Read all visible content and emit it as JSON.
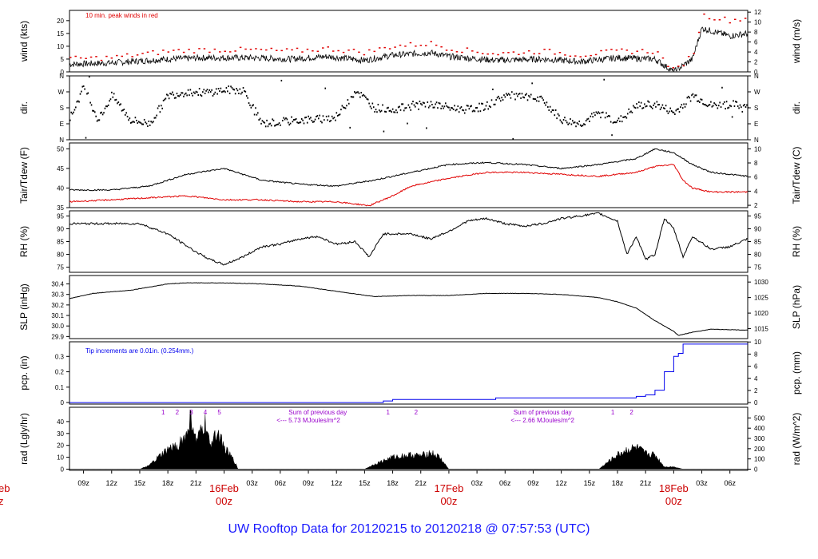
{
  "colors": {
    "red": "#e00000",
    "blue": "#0000ee",
    "purple": "#9900cc",
    "black": "#000000",
    "title": "#1a1aff",
    "date": "#cc0000"
  },
  "title": "UW Rooftop Data for 20120215  to  20120218 @ 07:57:53  (UTC)",
  "time_axis": {
    "hours_start": 7.5,
    "hours_end": 79.9,
    "tick_labels": [
      "09z",
      "12z",
      "15z",
      "18z",
      "21z",
      "",
      "03z",
      "06z",
      "09z",
      "12z",
      "15z",
      "18z",
      "21z",
      "",
      "03z",
      "06z",
      "09z",
      "12z",
      "15z",
      "18z",
      "21z",
      "",
      "03z",
      "06z"
    ],
    "tick_hours": [
      9,
      12,
      15,
      18,
      21,
      24,
      27,
      30,
      33,
      36,
      39,
      42,
      45,
      48,
      51,
      54,
      57,
      60,
      63,
      66,
      69,
      72,
      75,
      78
    ],
    "dates": [
      {
        "label": "16Feb",
        "hour": 24,
        "sub": "00z"
      },
      {
        "label": "17Feb",
        "hour": 48,
        "sub": "00z"
      },
      {
        "label": "18Feb",
        "hour": 72,
        "sub": "00z"
      }
    ],
    "partial_left_date": {
      "label": "eb",
      "sub": "z"
    }
  },
  "chart_data": [
    {
      "id": "wind",
      "type": "line",
      "ylabel": "wind (kts)",
      "ylabel_right": "wind (m/s)",
      "ylim": [
        0,
        24
      ],
      "yticks": [
        0,
        5,
        10,
        15,
        20
      ],
      "right_ylim": [
        0,
        12.35
      ],
      "right_ticks": [
        0,
        2,
        4,
        6,
        8,
        10,
        12
      ],
      "annotation": "10 min. peak winds in red",
      "series": [
        {
          "name": "wind speed",
          "color": "black",
          "x": [
            7.5,
            12,
            18,
            22,
            27,
            31,
            35,
            39,
            42,
            46,
            48,
            53,
            58,
            62,
            66,
            70,
            72,
            74,
            75,
            78,
            79.9
          ],
          "y": [
            3,
            3.5,
            5,
            5.5,
            5.5,
            5,
            6,
            4.5,
            6.5,
            7.5,
            6,
            4.5,
            5,
            4,
            5.5,
            5,
            0,
            5,
            17,
            14,
            15
          ]
        },
        {
          "name": "10 min. peak",
          "color": "red",
          "x": [
            7.5,
            12,
            18,
            22,
            27,
            31,
            35,
            39,
            42,
            46,
            48,
            53,
            58,
            62,
            66,
            70,
            72,
            74,
            75,
            78,
            79.9
          ],
          "y": [
            5,
            5.5,
            8,
            8.5,
            8.5,
            8,
            9,
            7.5,
            10,
            11,
            9,
            7,
            8,
            6.5,
            8,
            8,
            0,
            7,
            22,
            20,
            21
          ]
        }
      ]
    },
    {
      "id": "dir",
      "type": "scatter",
      "ylabel": "dir.",
      "ylim": [
        0,
        360
      ],
      "yticks": [
        0,
        90,
        180,
        270,
        360
      ],
      "ytick_labels": [
        "N",
        "E",
        "S",
        "W",
        "N"
      ],
      "right_ticks": [
        0,
        90,
        180,
        270,
        360
      ],
      "right_tick_labels": [
        "N",
        "E",
        "S",
        "W",
        "N"
      ],
      "series": [
        {
          "name": "wind direction",
          "color": "black",
          "x": [
            7.5,
            9,
            10.5,
            12,
            14,
            16,
            18,
            20,
            22,
            24,
            26,
            28,
            30,
            32,
            34,
            36,
            38,
            40,
            42,
            44,
            46,
            48,
            50,
            52,
            54,
            56,
            58,
            60,
            62,
            64,
            66,
            68,
            70,
            72,
            74,
            76,
            78,
            79.9
          ],
          "y": [
            120,
            300,
            110,
            250,
            110,
            90,
            250,
            270,
            265,
            280,
            280,
            90,
            100,
            110,
            115,
            130,
            280,
            180,
            170,
            190,
            200,
            180,
            170,
            190,
            250,
            240,
            220,
            110,
            90,
            150,
            100,
            190,
            200,
            150,
            250,
            190,
            200,
            180
          ]
        }
      ]
    },
    {
      "id": "temp",
      "type": "line",
      "ylabel": "Tair/Tdew (F)",
      "ylabel_right": "Tair/Tdew (C)",
      "ylim": [
        35,
        51.5
      ],
      "yticks": [
        35,
        40,
        45,
        50
      ],
      "right_ylim": [
        1.67,
        10.83
      ],
      "right_ticks": [
        2,
        4,
        6,
        8,
        10
      ],
      "series": [
        {
          "name": "Tair",
          "color": "black",
          "x": [
            7.5,
            12,
            16,
            20,
            24,
            28,
            32,
            36,
            40,
            44,
            48,
            52,
            56,
            60,
            64,
            68,
            70,
            72,
            74,
            76,
            79.9
          ],
          "y": [
            39.5,
            39.5,
            40.5,
            43.5,
            45,
            42,
            41,
            40.5,
            42,
            44,
            46,
            46.5,
            46,
            45,
            46,
            47.5,
            50,
            49,
            46,
            44,
            43
          ]
        },
        {
          "name": "Tdew",
          "color": "red",
          "x": [
            7.5,
            12,
            16,
            20,
            24,
            28,
            32,
            36,
            39.5,
            42,
            44,
            48,
            52,
            56,
            60,
            64,
            68,
            70,
            72,
            73,
            74,
            76,
            79.9
          ],
          "y": [
            36.5,
            37,
            37.5,
            38,
            37,
            37,
            36.5,
            36.5,
            35.5,
            38,
            40.5,
            42.5,
            44,
            44,
            43.5,
            43,
            44,
            45.5,
            46,
            42,
            40,
            39,
            39
          ]
        }
      ]
    },
    {
      "id": "rh",
      "type": "line",
      "ylabel": "RH (%)",
      "ylabel_right": "RH (%)",
      "ylim": [
        73,
        97
      ],
      "yticks": [
        75,
        80,
        85,
        90,
        95
      ],
      "right_ticks": [
        75,
        80,
        85,
        90,
        95
      ],
      "series": [
        {
          "name": "relative humidity",
          "color": "black",
          "x": [
            7.5,
            12,
            15,
            18,
            21,
            22.5,
            24,
            26,
            28,
            30,
            32,
            34,
            36,
            38,
            39.5,
            41,
            44,
            46,
            48,
            50,
            52,
            54,
            56,
            58,
            60,
            62,
            64,
            66,
            67,
            68,
            69,
            70,
            71,
            72,
            73,
            74,
            76,
            78,
            79.9
          ],
          "y": [
            92,
            92,
            92,
            88,
            81,
            78,
            76,
            79,
            83,
            84,
            86,
            87,
            84,
            85,
            79,
            88,
            88,
            86,
            89,
            93,
            94,
            92,
            91,
            92,
            94,
            95,
            96,
            93,
            80,
            87,
            78,
            80,
            94,
            90,
            79,
            87,
            82,
            83,
            86
          ]
        }
      ]
    },
    {
      "id": "slp",
      "type": "line",
      "ylabel": "SLP (inHg)",
      "ylabel_right": "SLP (hPa)",
      "ylim": [
        29.88,
        30.48
      ],
      "yticks": [
        29.9,
        30.0,
        30.1,
        30.2,
        30.3,
        30.4
      ],
      "right_ylim": [
        1011.8,
        1032.1
      ],
      "right_ticks": [
        1015,
        1020,
        1025,
        1030
      ],
      "series": [
        {
          "name": "sea level pressure",
          "color": "black",
          "x": [
            7.5,
            10,
            14,
            18,
            20,
            24,
            28,
            32,
            36,
            40,
            44,
            48,
            52,
            56,
            60,
            64,
            66,
            68,
            70,
            72,
            72.5,
            74,
            76,
            79.9
          ],
          "y": [
            30.26,
            30.31,
            30.34,
            30.4,
            30.41,
            30.41,
            30.4,
            30.38,
            30.33,
            30.28,
            30.29,
            30.29,
            30.31,
            30.31,
            30.3,
            30.27,
            30.23,
            30.17,
            30.05,
            29.95,
            29.91,
            29.94,
            29.97,
            29.96
          ]
        }
      ]
    },
    {
      "id": "pcp",
      "type": "line",
      "ylabel": "pcp. (in)",
      "ylabel_right": "pcp. (mm)",
      "ylim": [
        -0.01,
        0.395
      ],
      "yticks": [
        0.0,
        0.1,
        0.2,
        0.3
      ],
      "right_ylim": [
        -0.25,
        10.03
      ],
      "right_ticks": [
        0,
        2,
        4,
        6,
        8,
        10
      ],
      "annotation": "Tip increments are 0.01in. (0.254mm.)",
      "series": [
        {
          "name": "precipitation",
          "color": "blue",
          "x": [
            7.5,
            40,
            41,
            42,
            46,
            53,
            67,
            68,
            69,
            70,
            71,
            72,
            72.5,
            73,
            74,
            79.9
          ],
          "y": [
            0,
            0,
            0.01,
            0.02,
            0.02,
            0.03,
            0.03,
            0.04,
            0.05,
            0.08,
            0.2,
            0.3,
            0.32,
            0.38,
            0.38,
            0.38
          ]
        }
      ]
    },
    {
      "id": "rad",
      "type": "area",
      "ylabel": "rad (Lgly/hr)",
      "ylabel_right": "rad (W/m^2)",
      "ylim": [
        -1,
        52
      ],
      "yticks": [
        0,
        10,
        20,
        30,
        40
      ],
      "right_ylim": [
        -11.6,
        604
      ],
      "right_ticks": [
        0,
        100,
        200,
        300,
        400,
        500
      ],
      "annotations": [
        {
          "text": "Sum of previous day",
          "hour": 34,
          "row": 0
        },
        {
          "text": "<--- 5.73 MJoules/m^2",
          "hour": 33,
          "row": 1
        },
        {
          "text": "Sum of previous day",
          "hour": 58,
          "row": 0
        },
        {
          "text": "<--- 2.66 MJoules/m^2",
          "hour": 58,
          "row": 1
        }
      ],
      "hour_markers": [
        {
          "label": "1",
          "hour": 17.5
        },
        {
          "label": "2",
          "hour": 19
        },
        {
          "label": "3",
          "hour": 20.5
        },
        {
          "label": "4",
          "hour": 22
        },
        {
          "label": "5",
          "hour": 23.5
        },
        {
          "label": "1",
          "hour": 41.5
        },
        {
          "label": "2",
          "hour": 44.5
        },
        {
          "label": "1",
          "hour": 65.5
        },
        {
          "label": "2",
          "hour": 67.5
        }
      ],
      "series": [
        {
          "name": "solar radiation",
          "color": "black",
          "x": [
            7.5,
            15,
            16,
            17,
            18,
            19,
            20,
            20.5,
            21,
            21.5,
            22,
            22.5,
            23,
            23.5,
            24,
            25,
            25.5,
            39,
            40,
            42,
            44,
            45,
            46,
            47,
            48,
            64,
            65,
            66,
            67,
            68,
            69,
            70,
            71,
            72,
            73,
            79.9
          ],
          "y": [
            0,
            0,
            3,
            10,
            16,
            20,
            28,
            45,
            22,
            30,
            38,
            18,
            32,
            28,
            18,
            8,
            0,
            0,
            4,
            10,
            12,
            11,
            14,
            10,
            0,
            0,
            6,
            12,
            16,
            18,
            13,
            12,
            2,
            2,
            0,
            0
          ]
        }
      ]
    }
  ]
}
